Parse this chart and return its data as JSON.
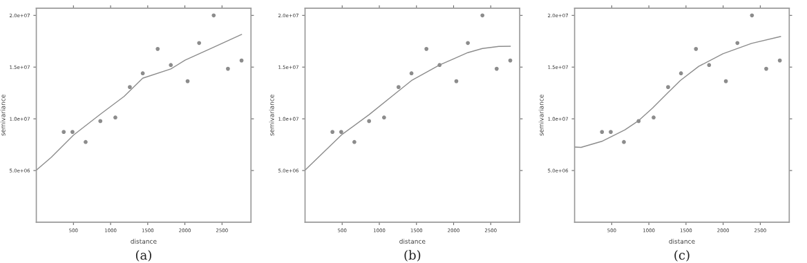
{
  "chart_data": [
    {
      "type": "scatter",
      "title": "(a)",
      "xlabel": "distance",
      "ylabel": "semivariance",
      "xlim": [
        0,
        2890
      ],
      "ylim": [
        0,
        20700000
      ],
      "xticks": [
        500,
        1000,
        1500,
        2000,
        2500
      ],
      "yticks": [
        {
          "value": 5000000,
          "label": "5.0e+06"
        },
        {
          "value": 10000000,
          "label": "1.0e+07"
        },
        {
          "value": 15000000,
          "label": "1.5e+07"
        },
        {
          "value": 20000000,
          "label": "2.0e+07"
        }
      ],
      "grid": false,
      "legend": false,
      "series": [
        {
          "marker": "circle",
          "color": "#8c8c8c",
          "x": [
            369,
            487,
            664,
            862,
            1064,
            1259,
            1433,
            1634,
            1811,
            2037,
            2192,
            2388,
            2580,
            2763
          ],
          "values": [
            8730000,
            8730000,
            7760000,
            9780000,
            10130000,
            13070000,
            14400000,
            16760000,
            15200000,
            13640000,
            17330000,
            20000000,
            14840000,
            15640000
          ]
        },
        {
          "type": "line",
          "marker": "none",
          "line_style": "solid",
          "color": "#8c8c8c",
          "x": [
            0,
            200,
            500,
            862,
            1181,
            1433,
            1811,
            2003,
            2388,
            2763
          ],
          "values": [
            5040000,
            6270000,
            8420000,
            10440000,
            12160000,
            13930000,
            14820000,
            15670000,
            16930000,
            18160000
          ]
        }
      ]
    },
    {
      "type": "scatter",
      "title": "(b)",
      "xlabel": "distance",
      "ylabel": "semivariance",
      "xlim": [
        0,
        2890
      ],
      "ylim": [
        0,
        20700000
      ],
      "xticks": [
        500,
        1000,
        1500,
        2000,
        2500
      ],
      "yticks": [
        {
          "value": 5000000,
          "label": "5.0e+06"
        },
        {
          "value": 10000000,
          "label": "1.0e+07"
        },
        {
          "value": 15000000,
          "label": "1.5e+07"
        },
        {
          "value": 20000000,
          "label": "2.0e+07"
        }
      ],
      "grid": false,
      "legend": false,
      "series": [
        {
          "marker": "circle",
          "color": "#8c8c8c",
          "x": [
            369,
            487,
            664,
            862,
            1064,
            1259,
            1433,
            1634,
            1811,
            2037,
            2192,
            2388,
            2580,
            2763
          ],
          "values": [
            8730000,
            8730000,
            7760000,
            9780000,
            10130000,
            13070000,
            14400000,
            16760000,
            15200000,
            13640000,
            17330000,
            20000000,
            14840000,
            15640000
          ]
        },
        {
          "type": "line",
          "marker": "none",
          "line_style": "solid",
          "color": "#8c8c8c",
          "x": [
            0,
            500,
            862,
            1259,
            1433,
            1811,
            2003,
            2192,
            2388,
            2608,
            2763
          ],
          "values": [
            5040000,
            8500000,
            10400000,
            12700000,
            13700000,
            15200000,
            15800000,
            16400000,
            16800000,
            17000000,
            17020000
          ]
        }
      ]
    },
    {
      "type": "scatter",
      "title": "(c)",
      "xlabel": "distance",
      "ylabel": "semivariance",
      "xlim": [
        0,
        2890
      ],
      "ylim": [
        0,
        20700000
      ],
      "xticks": [
        500,
        1000,
        1500,
        2000,
        2500
      ],
      "yticks": [
        {
          "value": 5000000,
          "label": "5.0e+06"
        },
        {
          "value": 10000000,
          "label": "1.0e+07"
        },
        {
          "value": 15000000,
          "label": "1.5e+07"
        },
        {
          "value": 20000000,
          "label": "2.0e+07"
        }
      ],
      "grid": false,
      "legend": false,
      "series": [
        {
          "marker": "circle",
          "color": "#8c8c8c",
          "x": [
            369,
            487,
            664,
            862,
            1064,
            1259,
            1433,
            1634,
            1811,
            2037,
            2192,
            2388,
            2580,
            2763
          ],
          "values": [
            8730000,
            8730000,
            7760000,
            9780000,
            10130000,
            13070000,
            14400000,
            16760000,
            15200000,
            13640000,
            17330000,
            20000000,
            14840000,
            15640000
          ]
        },
        {
          "type": "line",
          "marker": "none",
          "line_style": "solid",
          "color": "#8c8c8c",
          "x": [
            0,
            87,
            366,
            677,
            854,
            1050,
            1252,
            1425,
            1671,
            1997,
            2382,
            2773
          ],
          "values": [
            7270000,
            7240000,
            7820000,
            8930000,
            9780000,
            11040000,
            12490000,
            13710000,
            15070000,
            16290000,
            17290000,
            17960000
          ]
        }
      ]
    }
  ]
}
